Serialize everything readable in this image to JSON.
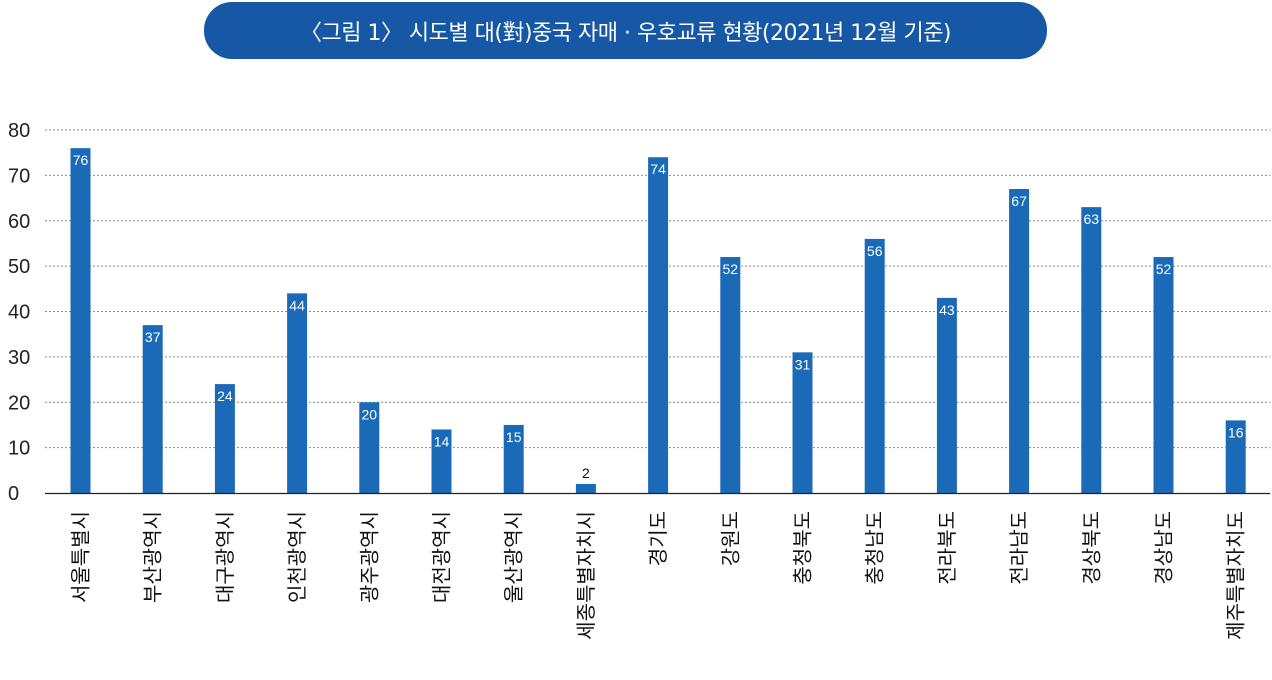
{
  "chart_data": {
    "type": "bar",
    "title": "〈그림 1〉 시도별 대(對)중국 자매 · 우호교류 현황(2021년 12월 기준)",
    "xlabel": "",
    "ylabel": "",
    "ylim": [
      0,
      80
    ],
    "yticks": [
      0,
      10,
      20,
      30,
      40,
      50,
      60,
      70,
      80
    ],
    "grid": true,
    "legend": "none",
    "bar_color": "#1a6ab8",
    "categories": [
      "서울특별시",
      "부산광역시",
      "대구광역시",
      "인천광역시",
      "광주광역시",
      "대전광역시",
      "울산광역시",
      "세종특별자치시",
      "경기도",
      "강원도",
      "충청북도",
      "충청남도",
      "전라북도",
      "전라남도",
      "경상북도",
      "경상남도",
      "제주특별자치도"
    ],
    "values": [
      76,
      37,
      24,
      44,
      20,
      14,
      15,
      2,
      74,
      52,
      31,
      56,
      43,
      67,
      63,
      52,
      16
    ]
  }
}
